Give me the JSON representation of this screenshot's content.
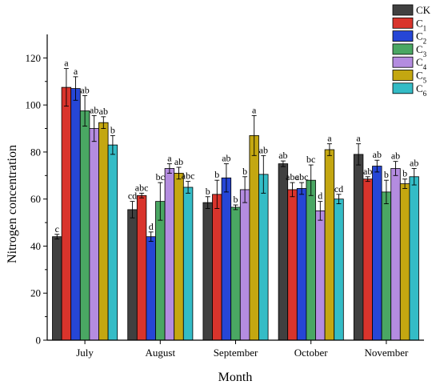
{
  "chart_data": {
    "type": "bar",
    "title": "",
    "xlabel": "Month",
    "ylabel": "Nitrogen concentration",
    "ylim": [
      0,
      130
    ],
    "yticks": [
      "0",
      "20",
      "40",
      "60",
      "80",
      "100",
      "120"
    ],
    "grid": false,
    "legend_position": "top-right",
    "categories": [
      "July",
      "August",
      "September",
      "October",
      "November"
    ],
    "series": [
      {
        "name": "CK",
        "legend": {
          "base": "CK",
          "sub": ""
        },
        "color": "#404040",
        "values": [
          44,
          55.5,
          58.5,
          75,
          79
        ],
        "errors": [
          1,
          3.5,
          2.5,
          1.2,
          4.5
        ],
        "labels": [
          "c",
          "cd",
          "b",
          "ab",
          "a"
        ]
      },
      {
        "name": "C1",
        "legend": {
          "base": "C",
          "sub": "1"
        },
        "color": "#d9342c",
        "values": [
          107.5,
          61.5,
          62,
          64,
          68.5
        ],
        "errors": [
          8,
          1,
          6,
          3,
          1
        ],
        "labels": [
          "a",
          "abc",
          "b",
          "abc",
          "ab"
        ]
      },
      {
        "name": "C2",
        "legend": {
          "base": "C",
          "sub": "2"
        },
        "color": "#2646d6",
        "values": [
          107,
          44,
          69,
          64.5,
          74
        ],
        "errors": [
          5,
          2,
          6,
          2.5,
          2.5
        ],
        "labels": [
          "a",
          "d",
          "ab",
          "abc",
          "ab"
        ]
      },
      {
        "name": "C3",
        "legend": {
          "base": "C",
          "sub": "3"
        },
        "color": "#4aa763",
        "values": [
          97.5,
          59,
          56.5,
          68,
          63
        ],
        "errors": [
          6.5,
          8,
          1,
          6.5,
          5
        ],
        "labels": [
          "ab",
          "bc",
          "b",
          "bc",
          "b"
        ]
      },
      {
        "name": "C4",
        "legend": {
          "base": "C",
          "sub": "4"
        },
        "color": "#b48ce0",
        "values": [
          90,
          73,
          64,
          55,
          73
        ],
        "errors": [
          5.5,
          2,
          5.5,
          4,
          3
        ],
        "labels": [
          "ab",
          "a",
          "b",
          "d",
          "ab"
        ]
      },
      {
        "name": "C5",
        "legend": {
          "base": "C",
          "sub": "5"
        },
        "color": "#c4a711",
        "values": [
          92.5,
          71,
          87,
          81,
          66.5
        ],
        "errors": [
          2.5,
          2.5,
          8.5,
          2.5,
          2
        ],
        "labels": [
          "ab",
          "ab",
          "a",
          "a",
          "b"
        ]
      },
      {
        "name": "C6",
        "legend": {
          "base": "C",
          "sub": "6"
        },
        "color": "#34bcc6",
        "values": [
          83,
          65,
          70.5,
          60,
          69.5
        ],
        "errors": [
          4,
          2.5,
          8,
          2,
          3.5
        ],
        "labels": [
          "b",
          "abc",
          "ab",
          "cd",
          "ab"
        ]
      }
    ]
  }
}
